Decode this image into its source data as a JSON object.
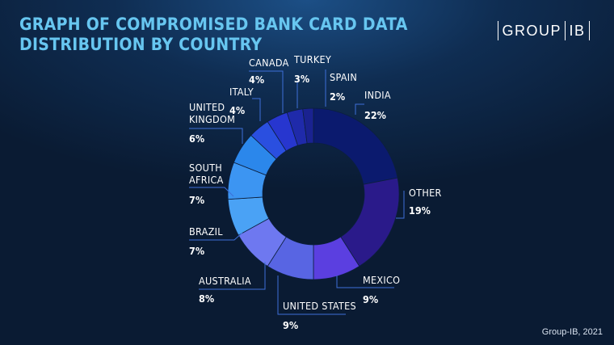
{
  "header": {
    "title": "GRAPH OF COMPROMISED BANK CARD DATA DISTRIBUTION BY COUNTRY"
  },
  "logo": {
    "left": "GROUP",
    "right": "IB"
  },
  "footer": {
    "credit": "Group-IB, 2021"
  },
  "chart_data": {
    "type": "pie",
    "donut": true,
    "title": "GRAPH OF COMPROMISED BANK CARD DATA DISTRIBUTION BY COUNTRY",
    "unit": "%",
    "slices": [
      {
        "label": "INDIA",
        "value": 22,
        "display": "22%",
        "color": "#0b1a6e"
      },
      {
        "label": "OTHER",
        "value": 19,
        "display": "19%",
        "color": "#2a1a8a"
      },
      {
        "label": "MEXICO",
        "value": 9,
        "display": "9%",
        "color": "#5b3fe0"
      },
      {
        "label": "UNITED STATES",
        "value": 9,
        "display": "9%",
        "color": "#5865e3"
      },
      {
        "label": "AUSTRALIA",
        "value": 8,
        "display": "8%",
        "color": "#6e78f0"
      },
      {
        "label": "BRAZIL",
        "value": 7,
        "display": "7%",
        "color": "#4aa2f5"
      },
      {
        "label": "SOUTH AFRICA",
        "value": 7,
        "display": "7%",
        "color": "#3c95f2"
      },
      {
        "label": "UNITED KINGDOM",
        "value": 6,
        "display": "6%",
        "color": "#2b87eb"
      },
      {
        "label": "ITALY",
        "value": 4,
        "display": "4%",
        "color": "#2a4fe0"
      },
      {
        "label": "CANADA",
        "value": 4,
        "display": "4%",
        "color": "#2736cf"
      },
      {
        "label": "TURKEY",
        "value": 3,
        "display": "3%",
        "color": "#1f2aaa"
      },
      {
        "label": "SPAIN",
        "value": 2,
        "display": "2%",
        "color": "#1a2290"
      }
    ]
  }
}
